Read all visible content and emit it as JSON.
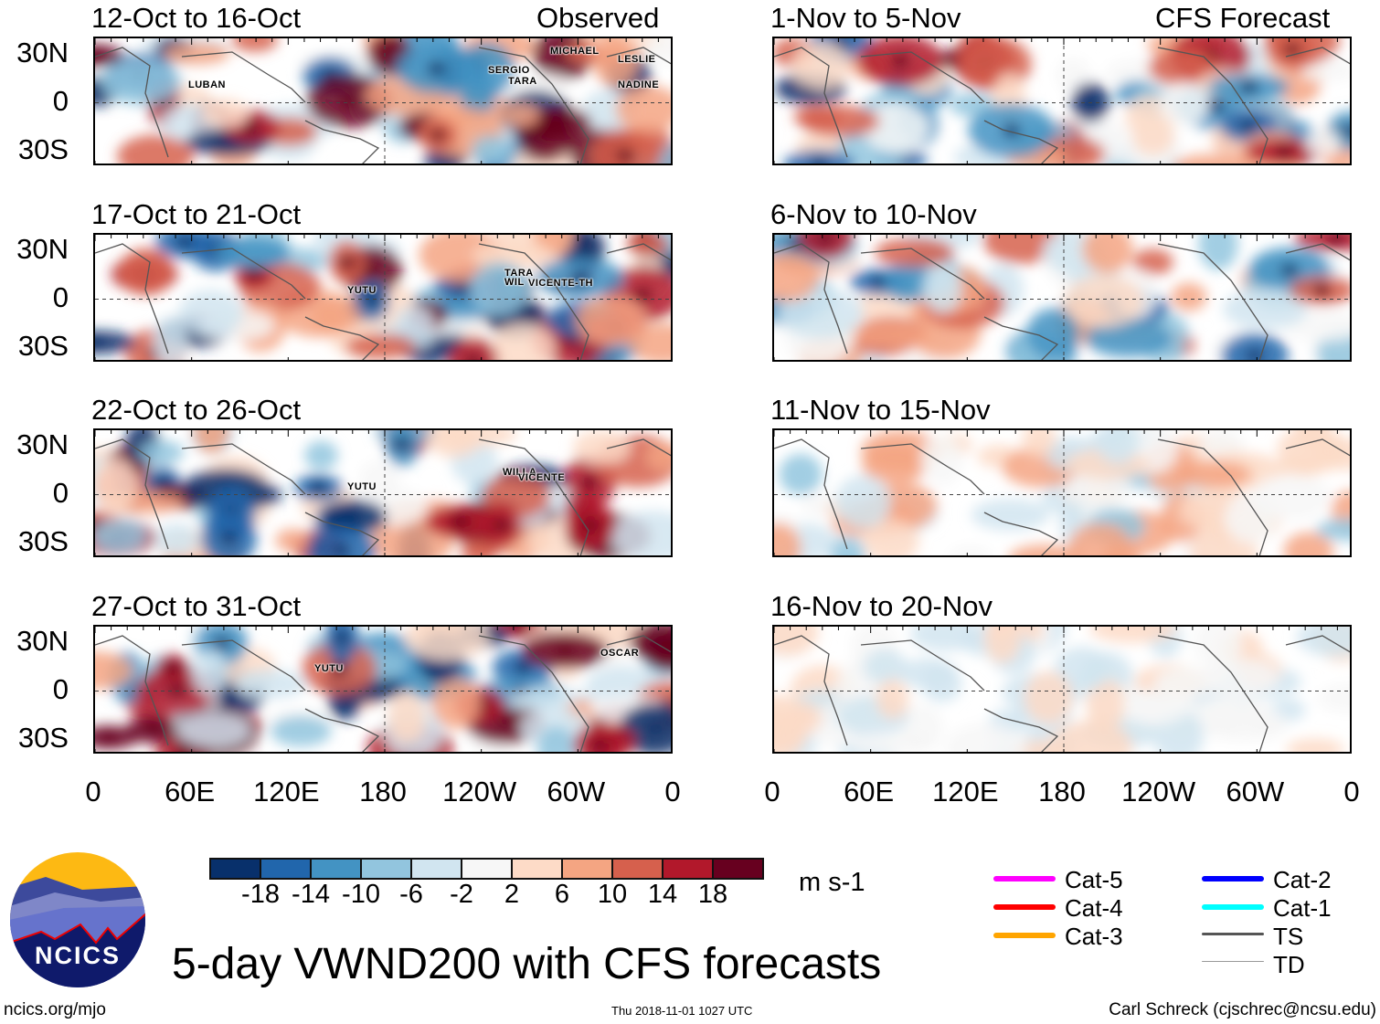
{
  "headers": {
    "left": "Observed",
    "right": "CFS Forecast"
  },
  "panels_left": [
    {
      "title": "12-Oct to 16-Oct",
      "storms": [
        "MICHAEL",
        "LESLIE",
        "SERGIO",
        "TARA",
        "NADINE",
        "LUBAN"
      ]
    },
    {
      "title": "17-Oct to 21-Oct",
      "storms": [
        "YUTU",
        "TARA",
        "WIL",
        "VICENTE-TH"
      ]
    },
    {
      "title": "22-Oct to 26-Oct",
      "storms": [
        "YUTU",
        "WILLA",
        "VICENTE"
      ]
    },
    {
      "title": "27-Oct to 31-Oct",
      "storms": [
        "YUTU",
        "OSCAR"
      ]
    }
  ],
  "panels_right": [
    {
      "title": "1-Nov to 5-Nov"
    },
    {
      "title": "6-Nov to 10-Nov"
    },
    {
      "title": "11-Nov to 15-Nov"
    },
    {
      "title": "16-Nov to 20-Nov"
    }
  ],
  "lat_labels": [
    "30N",
    "0",
    "30S"
  ],
  "lon_labels": [
    "0",
    "60E",
    "120E",
    "180",
    "120W",
    "60W",
    "0"
  ],
  "colorbar": {
    "colors": [
      "#08306b",
      "#2166ac",
      "#4393c3",
      "#92c5de",
      "#d1e5f0",
      "#f7f7f7",
      "#fddbc7",
      "#f4a582",
      "#d6604d",
      "#b2182b",
      "#67001f"
    ],
    "labels": [
      "-18",
      "-14",
      "-10",
      "-6",
      "-2",
      "2",
      "6",
      "10",
      "14",
      "18"
    ],
    "units": "m s-1"
  },
  "legend": [
    {
      "label": "Cat-5",
      "color": "#ff00ff"
    },
    {
      "label": "Cat-4",
      "color": "#ff0000"
    },
    {
      "label": "Cat-3",
      "color": "#ffa500"
    },
    {
      "label": "Cat-2",
      "color": "#0000ff"
    },
    {
      "label": "Cat-1",
      "color": "#00ffff"
    },
    {
      "label": "TS",
      "color": "#555555"
    },
    {
      "label": "TD",
      "color": "#999999"
    }
  ],
  "logo_text": "NCICS",
  "main_title": "5-day VWND200 with CFS forecasts",
  "footer": {
    "left": "ncics.org/mjo",
    "center": "Thu 2018-11-01 1027 UTC",
    "right": "Carl Schreck (cjschrec@ncsu.edu)"
  }
}
